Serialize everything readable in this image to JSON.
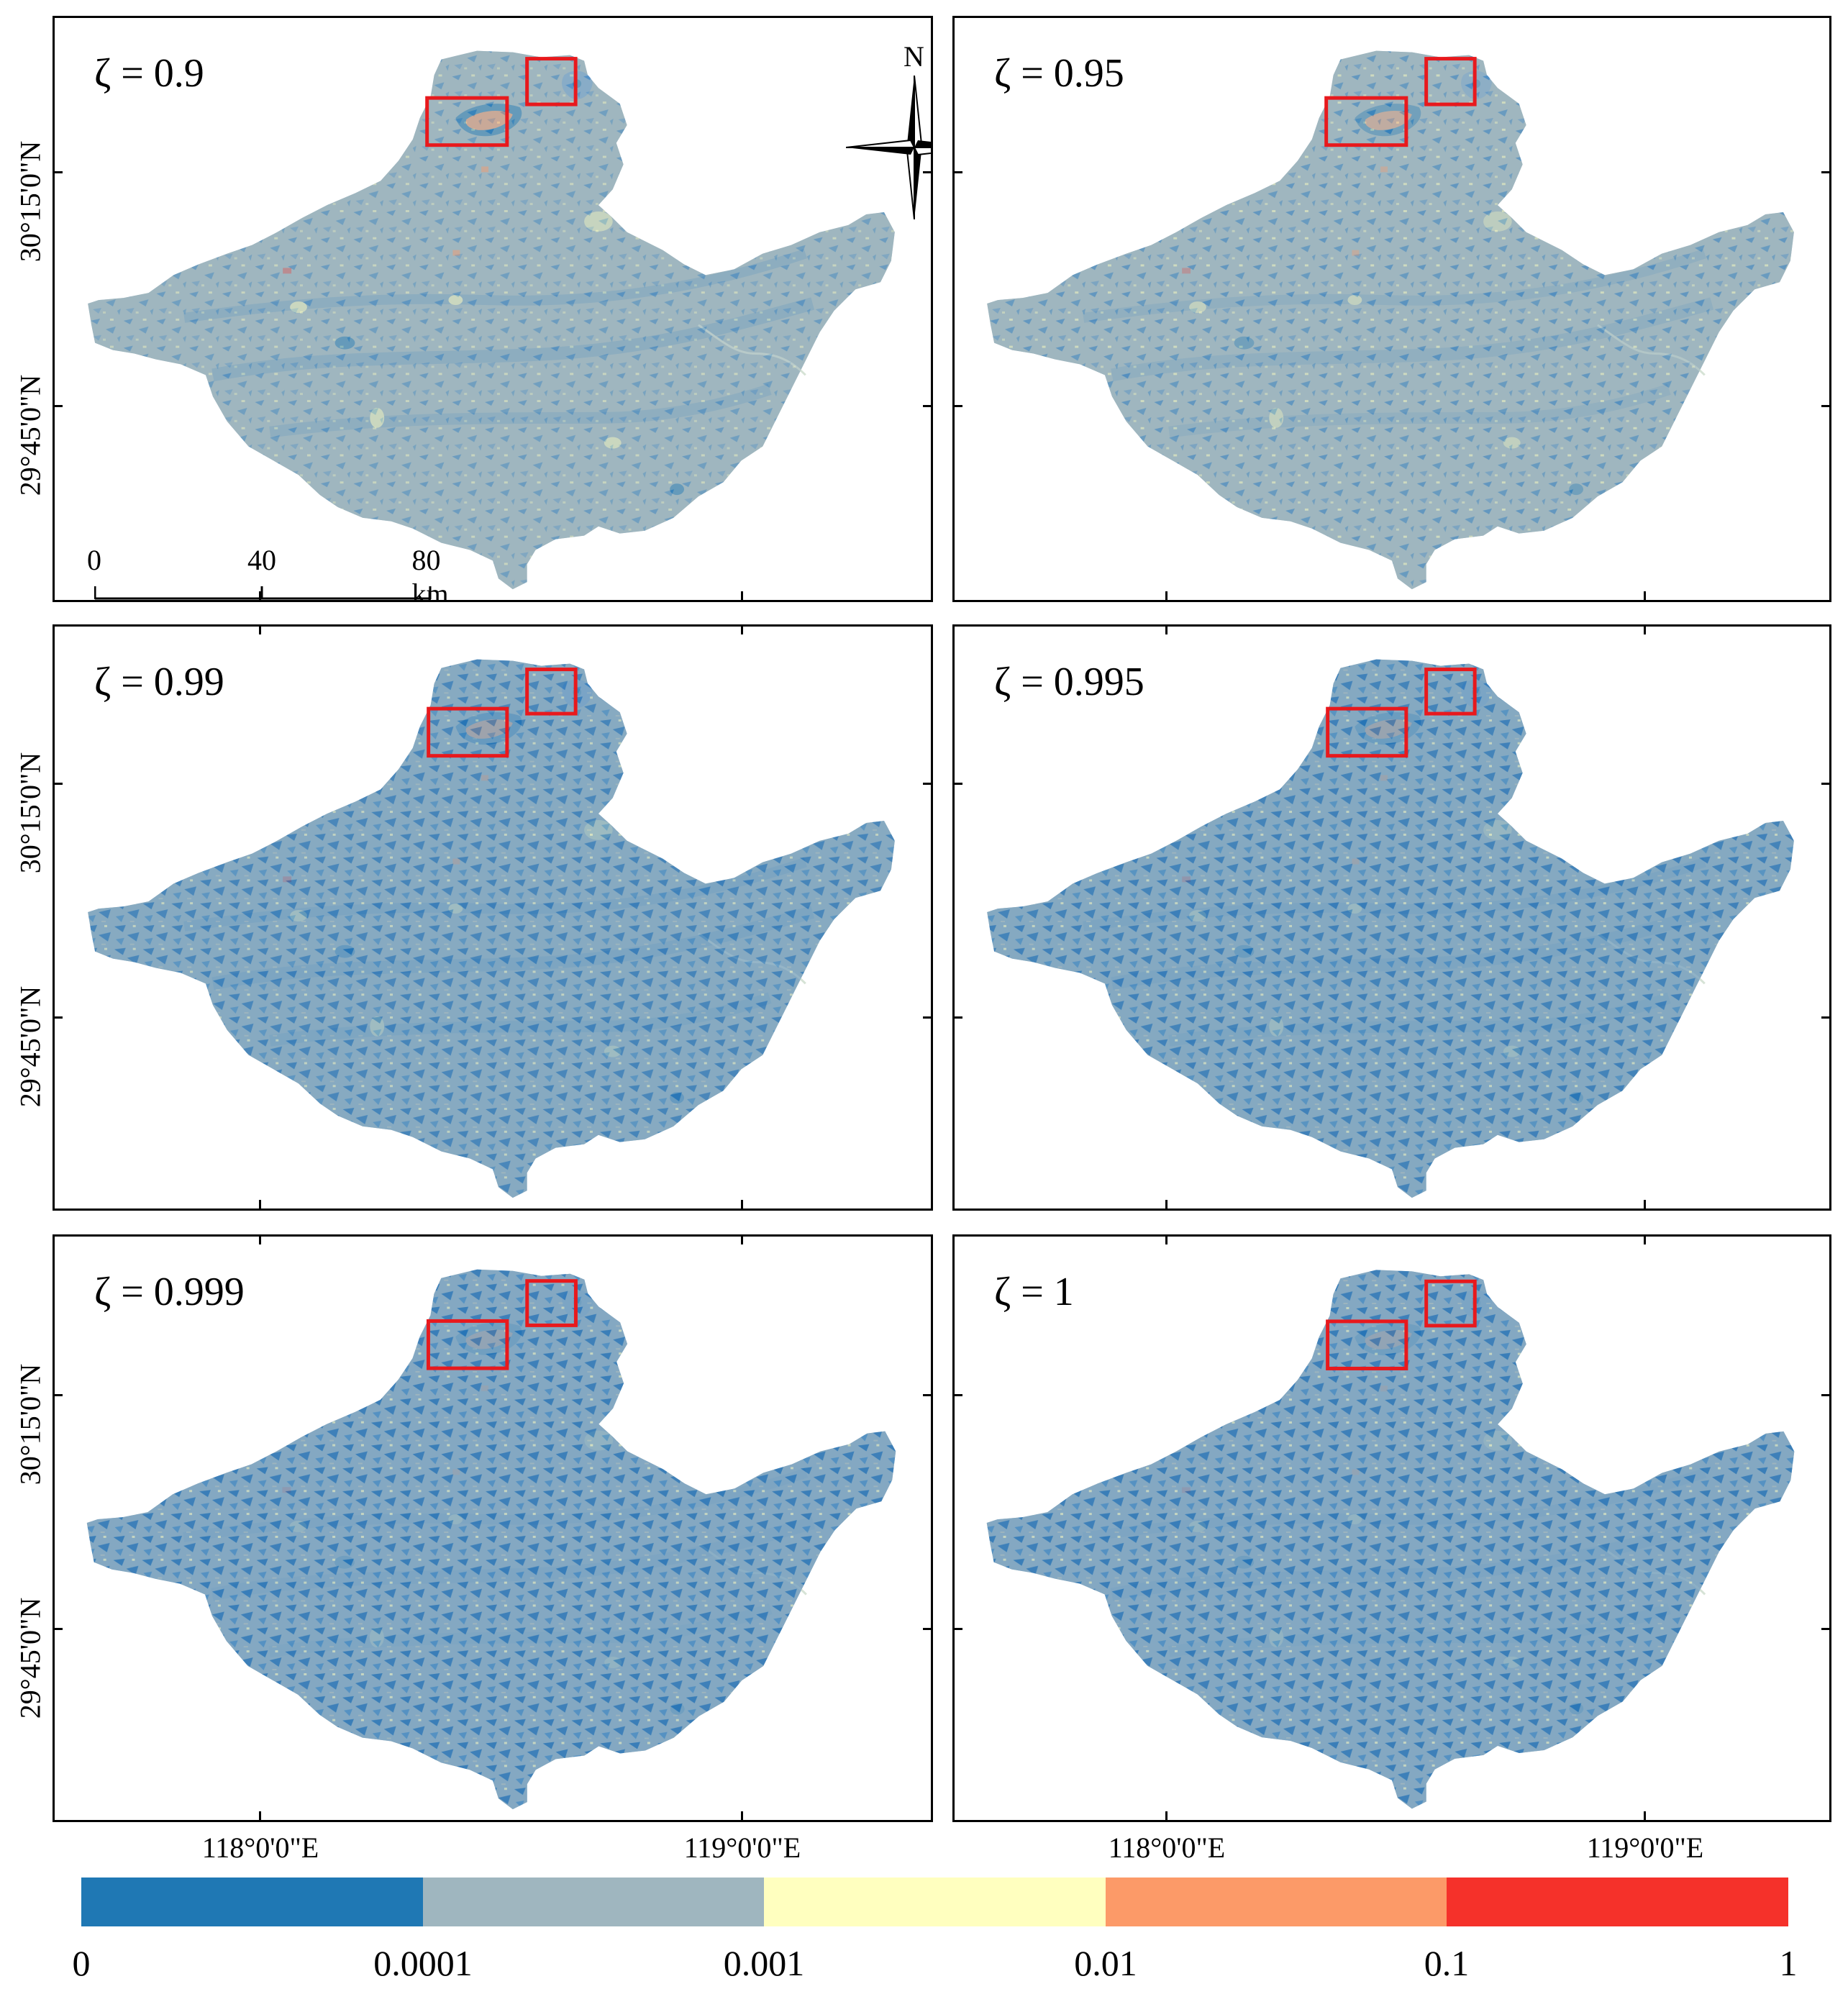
{
  "figure": {
    "panels": [
      {
        "zeta_label": "ζ = 0.9"
      },
      {
        "zeta_label": "ζ = 0.95"
      },
      {
        "zeta_label": "ζ = 0.99"
      },
      {
        "zeta_label": "ζ = 0.995"
      },
      {
        "zeta_label": "ζ = 0.999"
      },
      {
        "zeta_label": "ζ = 1"
      }
    ],
    "latitude_labels": [
      "30°15'0\"N",
      "29°45'0\"N"
    ],
    "longitude_labels": [
      "118°0'0\"E",
      "119°0'0\"E"
    ],
    "north_arrow": {
      "label": "N",
      "icon": "north-arrow-icon"
    },
    "scale_bar": {
      "labels": [
        "0",
        "40",
        "80 km"
      ]
    },
    "legend": {
      "colors": [
        "#1f78b4",
        "#9fb6bf",
        "#ffffbf",
        "#fc9a68",
        "#f5312a"
      ],
      "labels": [
        "0",
        "0.0001",
        "0.001",
        "0.01",
        "0.1",
        "1"
      ]
    },
    "highlight_color": "#e8191d"
  }
}
